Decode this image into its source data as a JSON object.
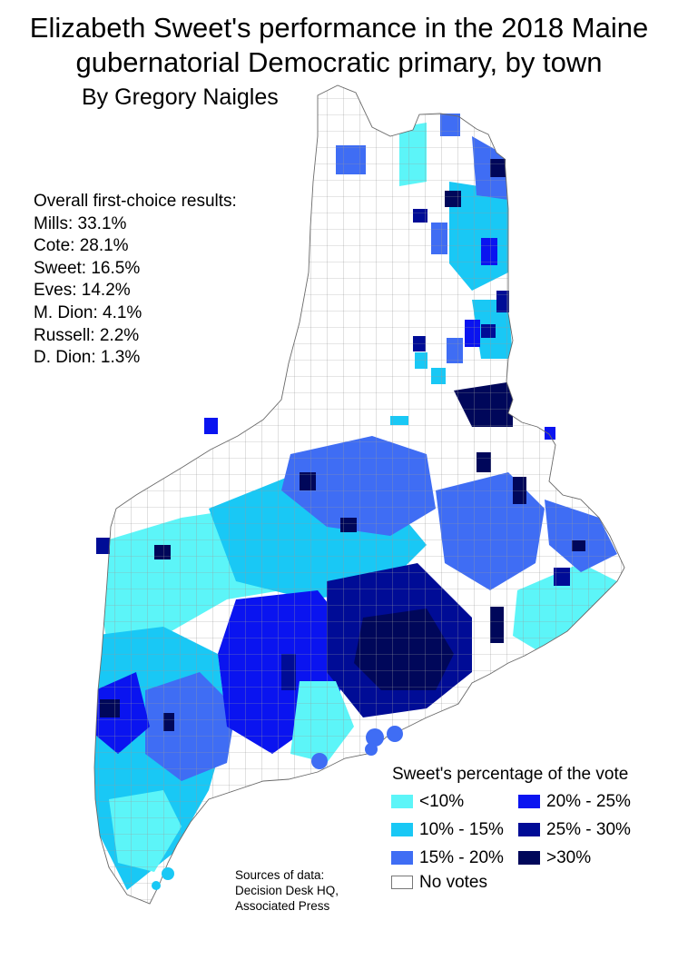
{
  "header": {
    "title_line1": "Elizabeth Sweet's performance in the 2018 Maine",
    "title_line2": "gubernatorial Democratic primary, by town",
    "byline": "By Gregory Naigles"
  },
  "results": {
    "heading": "Overall first-choice results:",
    "items": [
      {
        "text": "Mills: 33.1%"
      },
      {
        "text": "Cote: 28.1%"
      },
      {
        "text": "Sweet: 16.5%"
      },
      {
        "text": "Eves: 14.2%"
      },
      {
        "text": "M. Dion: 4.1%"
      },
      {
        "text": "Russell: 2.2%"
      },
      {
        "text": "D. Dion: 1.3%"
      }
    ]
  },
  "legend": {
    "title": "Sweet's percentage of the vote",
    "items": [
      {
        "label": "<10%",
        "color": "#5cf5f8"
      },
      {
        "label": "10% - 15%",
        "color": "#19c8f5"
      },
      {
        "label": "15% - 20%",
        "color": "#3f6df4"
      },
      {
        "label": "20% - 25%",
        "color": "#0a14f0"
      },
      {
        "label": "25% - 30%",
        "color": "#000c96"
      },
      {
        "label": ">30%",
        "color": "#00075a"
      },
      {
        "label": "No votes",
        "color": "#ffffff"
      }
    ]
  },
  "sources": {
    "line1": "Sources of data:",
    "line2": "Decision Desk HQ,",
    "line3": "Associated Press"
  }
}
